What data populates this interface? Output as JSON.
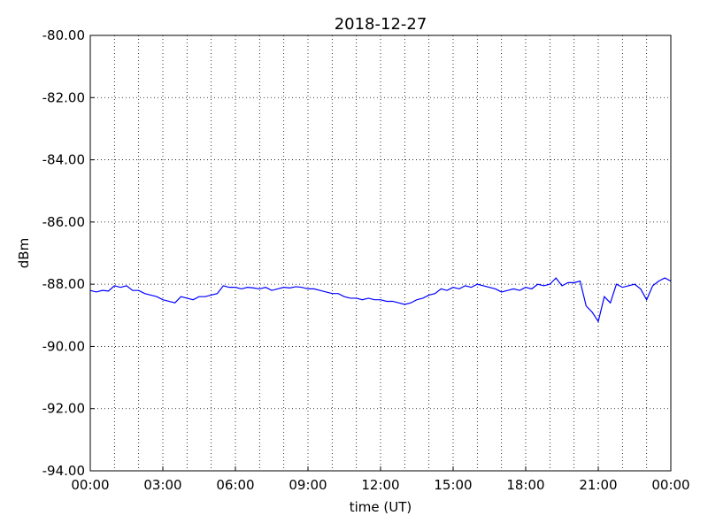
{
  "chart_data": {
    "type": "line",
    "title": "2018-12-27",
    "xlabel": "time (UT)",
    "ylabel": "dBm",
    "x": [
      0,
      0.25,
      0.5,
      0.75,
      1,
      1.25,
      1.5,
      1.75,
      2,
      2.25,
      2.5,
      2.75,
      3,
      3.25,
      3.5,
      3.75,
      4,
      4.25,
      4.5,
      4.75,
      5,
      5.25,
      5.5,
      5.75,
      6,
      6.25,
      6.5,
      6.75,
      7,
      7.25,
      7.5,
      7.75,
      8,
      8.25,
      8.5,
      8.75,
      9,
      9.25,
      9.5,
      9.75,
      10,
      10.25,
      10.5,
      10.75,
      11,
      11.25,
      11.5,
      11.75,
      12,
      12.25,
      12.5,
      12.75,
      13,
      13.25,
      13.5,
      13.75,
      14,
      14.25,
      14.5,
      14.75,
      15,
      15.25,
      15.5,
      15.75,
      16,
      16.25,
      16.5,
      16.75,
      17,
      17.25,
      17.5,
      17.75,
      18,
      18.25,
      18.5,
      18.75,
      19,
      19.25,
      19.5,
      19.75,
      20,
      20.25,
      20.5,
      20.75,
      21,
      21.25,
      21.5,
      21.75,
      22,
      22.25,
      22.5,
      22.75,
      23,
      23.25,
      23.5,
      23.75,
      24
    ],
    "series": [
      {
        "color": "#0000ff",
        "values": [
          -88.2,
          -88.25,
          -88.2,
          -88.22,
          -88.05,
          -88.1,
          -88.05,
          -88.2,
          -88.2,
          -88.3,
          -88.35,
          -88.4,
          -88.5,
          -88.55,
          -88.6,
          -88.4,
          -88.45,
          -88.5,
          -88.4,
          -88.4,
          -88.35,
          -88.3,
          -88.05,
          -88.1,
          -88.1,
          -88.15,
          -88.1,
          -88.12,
          -88.15,
          -88.1,
          -88.2,
          -88.15,
          -88.1,
          -88.12,
          -88.08,
          -88.1,
          -88.15,
          -88.15,
          -88.2,
          -88.25,
          -88.3,
          -88.3,
          -88.4,
          -88.45,
          -88.45,
          -88.5,
          -88.45,
          -88.5,
          -88.5,
          -88.55,
          -88.55,
          -88.6,
          -88.65,
          -88.6,
          -88.5,
          -88.45,
          -88.35,
          -88.3,
          -88.15,
          -88.2,
          -88.1,
          -88.15,
          -88.05,
          -88.1,
          -88.0,
          -88.05,
          -88.1,
          -88.15,
          -88.25,
          -88.2,
          -88.15,
          -88.2,
          -88.1,
          -88.15,
          -88.0,
          -88.05,
          -88.0,
          -87.8,
          -88.05,
          -87.95,
          -87.95,
          -87.9,
          -88.7,
          -88.9,
          -89.2,
          -88.4,
          -88.6,
          -88.0,
          -88.1,
          -88.05,
          -88.0,
          -88.15,
          -88.5,
          -88.05,
          -87.9,
          -87.8,
          -87.9
        ]
      }
    ],
    "xlim": [
      0,
      24
    ],
    "xticks": [
      {
        "value": 0,
        "label": "00:00"
      },
      {
        "value": 3,
        "label": "03:00"
      },
      {
        "value": 6,
        "label": "06:00"
      },
      {
        "value": 9,
        "label": "09:00"
      },
      {
        "value": 12,
        "label": "12:00"
      },
      {
        "value": 15,
        "label": "15:00"
      },
      {
        "value": 18,
        "label": "18:00"
      },
      {
        "value": 21,
        "label": "21:00"
      },
      {
        "value": 24,
        "label": "00:00"
      }
    ],
    "xminorticks": [
      1,
      2,
      4,
      5,
      7,
      8,
      10,
      11,
      13,
      14,
      16,
      17,
      19,
      20,
      22,
      23
    ],
    "ylim": [
      -94,
      -80
    ],
    "yticks": [
      {
        "value": -94,
        "label": "-94.00"
      },
      {
        "value": -92,
        "label": "-92.00"
      },
      {
        "value": -90,
        "label": "-90.00"
      },
      {
        "value": -88,
        "label": "-88.00"
      },
      {
        "value": -86,
        "label": "-86.00"
      },
      {
        "value": -84,
        "label": "-84.00"
      },
      {
        "value": -82,
        "label": "-82.00"
      },
      {
        "value": -80,
        "label": "-80.00"
      }
    ],
    "grid": true
  }
}
